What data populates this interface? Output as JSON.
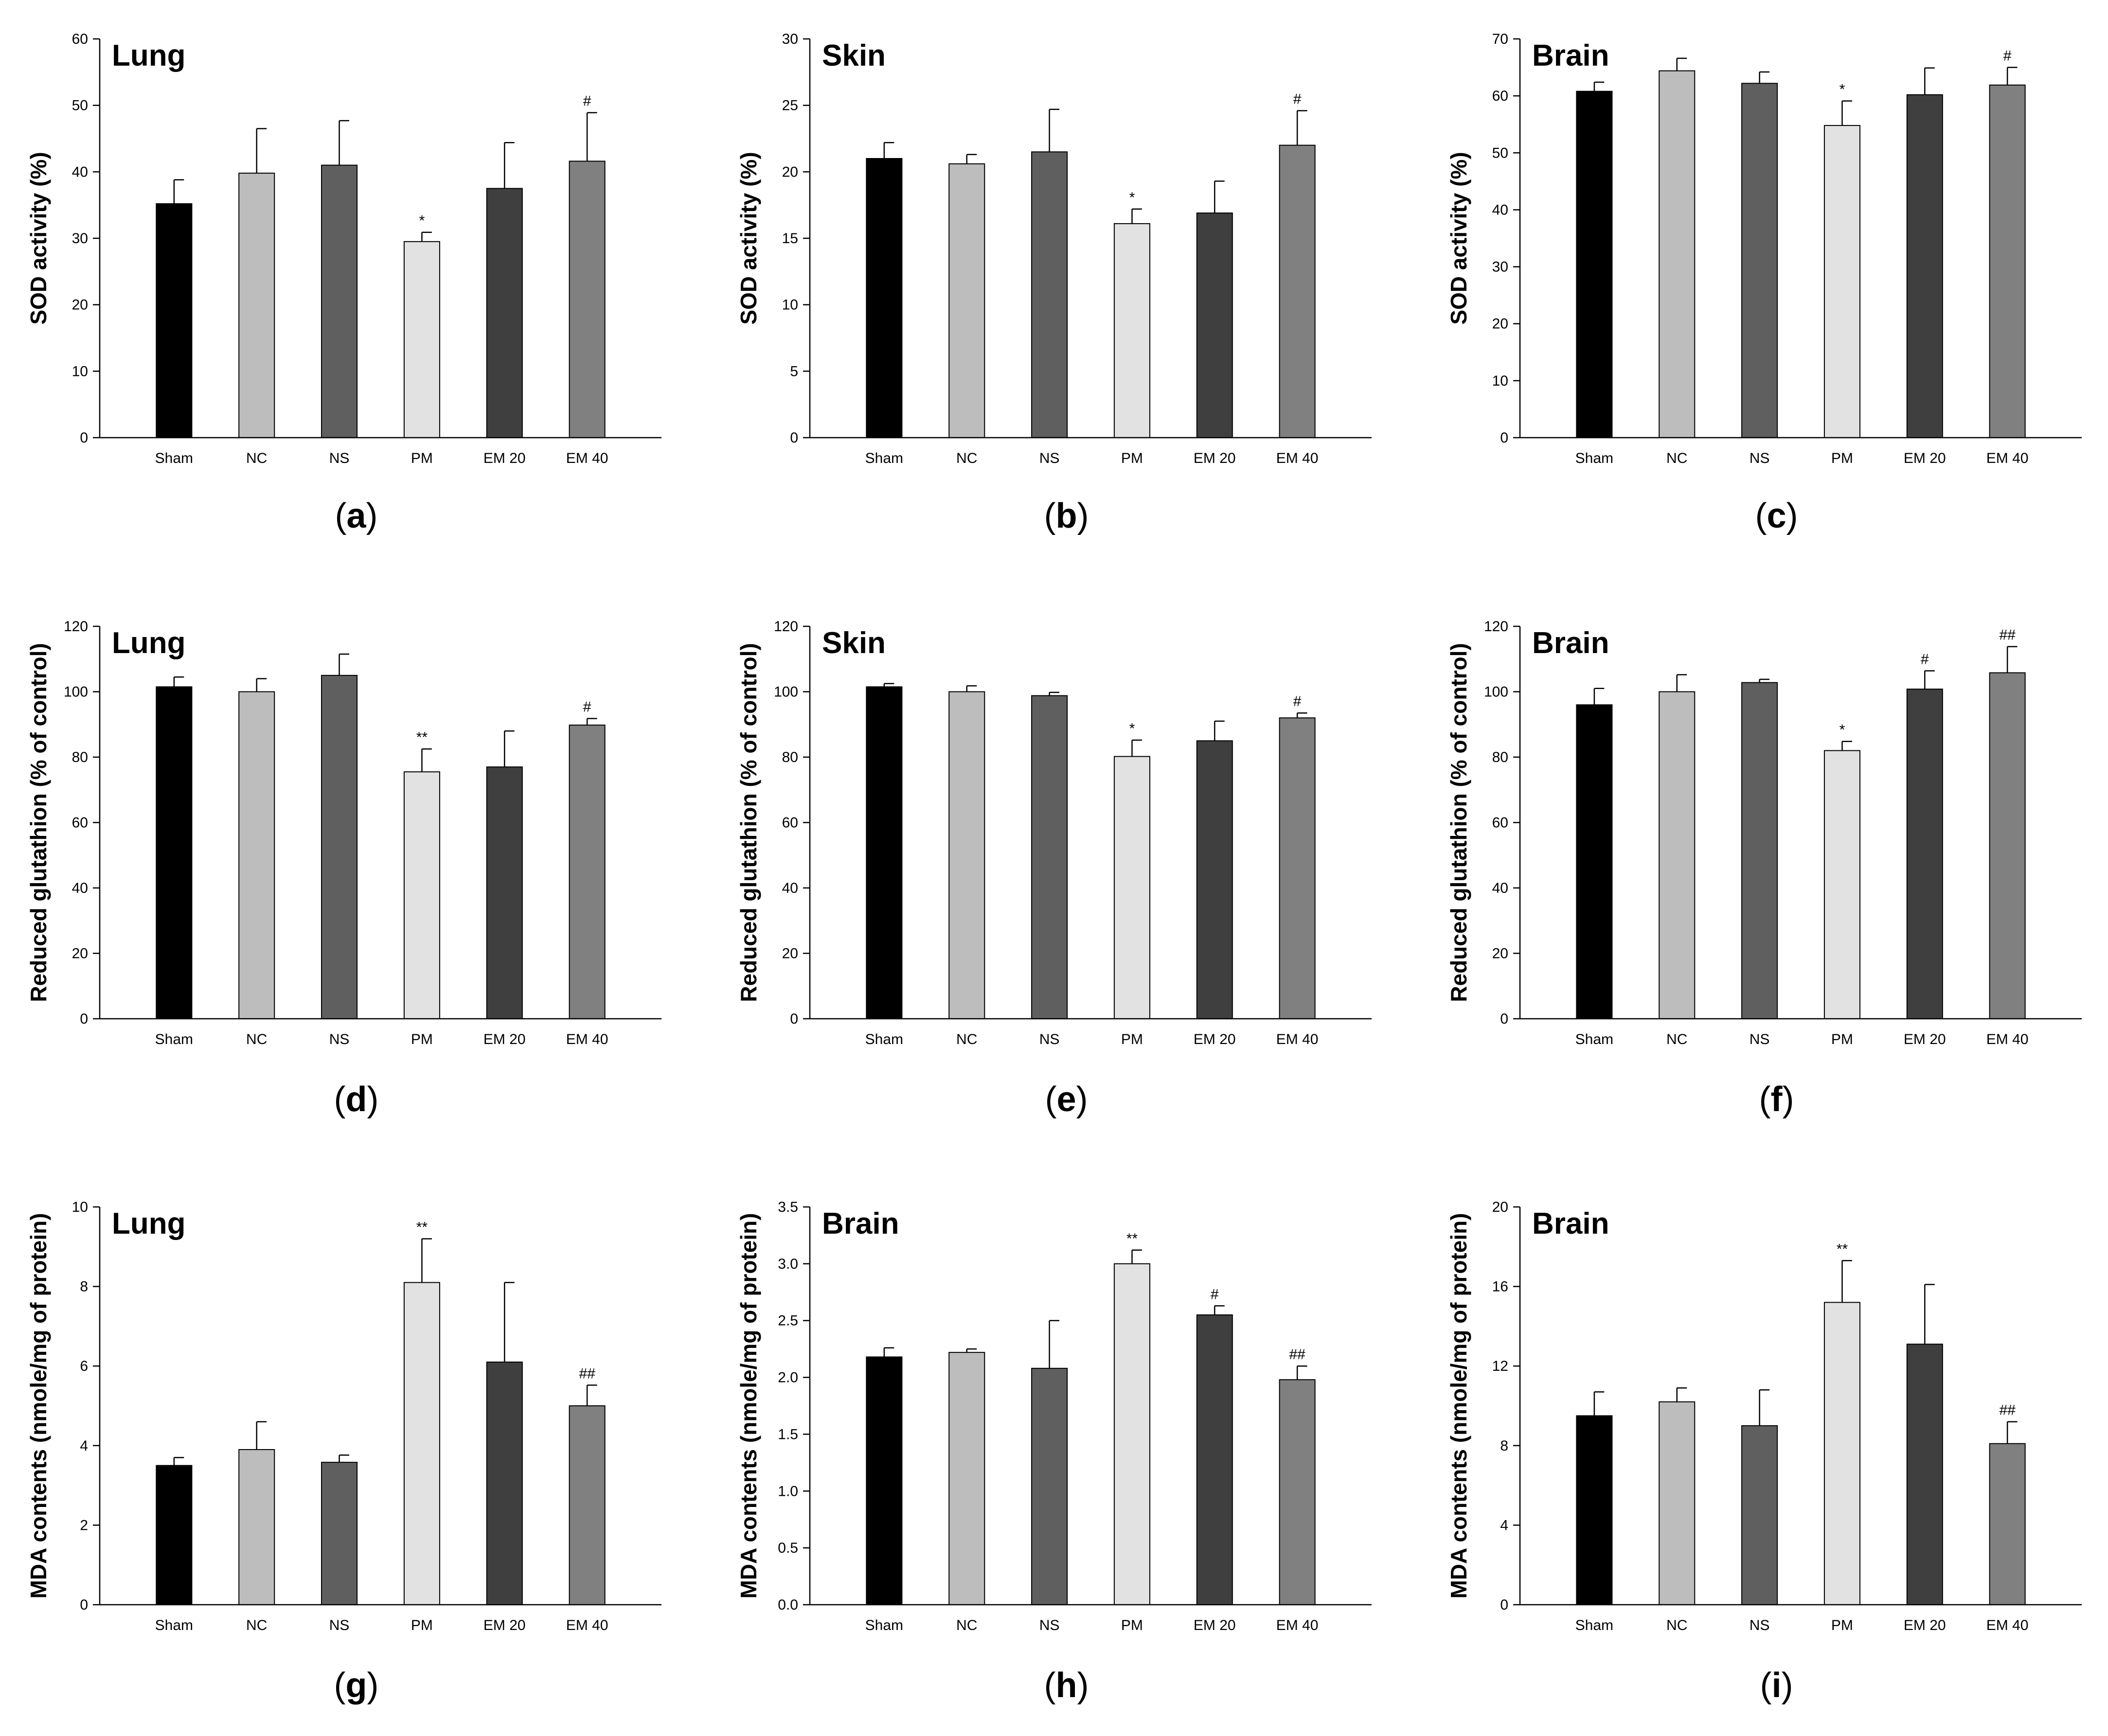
{
  "colors": {
    "Sham": "#000000",
    "NC": "#bdbdbd",
    "NS": "#5f5f5f",
    "PM": "#e2e2e2",
    "EM 20": "#3f3f3f",
    "EM 40": "#808080"
  },
  "chart_data": [
    {
      "id": "a",
      "type": "bar",
      "caption_letter": "a",
      "title": "Lung",
      "ylabel": "SOD activity (%)",
      "ylim": [
        0,
        60
      ],
      "yticks": [
        0,
        10,
        20,
        30,
        40,
        50,
        60
      ],
      "categories": [
        "Sham",
        "NC",
        "NS",
        "PM",
        "EM 20",
        "EM 40"
      ],
      "values": [
        35.2,
        39.8,
        41.0,
        29.5,
        37.5,
        41.6
      ],
      "errors": [
        3.6,
        6.7,
        6.7,
        1.4,
        6.9,
        7.3
      ],
      "significance": [
        "",
        "",
        "",
        "*",
        "",
        "#"
      ]
    },
    {
      "id": "b",
      "type": "bar",
      "caption_letter": "b",
      "title": "Skin",
      "ylabel": "SOD activity (%)",
      "ylim": [
        0,
        30
      ],
      "yticks": [
        0,
        5,
        10,
        15,
        20,
        25,
        30
      ],
      "categories": [
        "Sham",
        "NC",
        "NS",
        "PM",
        "EM 20",
        "EM 40"
      ],
      "values": [
        21.0,
        20.6,
        21.5,
        16.1,
        16.9,
        22.0
      ],
      "errors": [
        1.2,
        0.7,
        3.2,
        1.1,
        2.4,
        2.6
      ],
      "significance": [
        "",
        "",
        "",
        "*",
        "",
        "#"
      ]
    },
    {
      "id": "c",
      "type": "bar",
      "caption_letter": "c",
      "title": "Brain",
      "ylabel": "SOD activity (%)",
      "ylim": [
        0,
        70
      ],
      "yticks": [
        0,
        10,
        20,
        30,
        40,
        50,
        60,
        70
      ],
      "categories": [
        "Sham",
        "NC",
        "NS",
        "PM",
        "EM 20",
        "EM 40"
      ],
      "values": [
        60.8,
        64.4,
        62.2,
        54.8,
        60.2,
        61.9
      ],
      "errors": [
        1.6,
        2.2,
        2.0,
        4.3,
        4.7,
        3.1
      ],
      "significance": [
        "",
        "",
        "",
        "*",
        "",
        "#"
      ]
    },
    {
      "id": "d",
      "type": "bar",
      "caption_letter": "d",
      "title": "Lung",
      "ylabel": "Reduced glutathion (% of control)",
      "ylim": [
        0,
        120
      ],
      "yticks": [
        0,
        20,
        40,
        60,
        80,
        100,
        120
      ],
      "categories": [
        "Sham",
        "NC",
        "NS",
        "PM",
        "EM 20",
        "EM 40"
      ],
      "values": [
        101.5,
        100.0,
        105.0,
        75.5,
        77.0,
        89.8
      ],
      "errors": [
        3.0,
        4.0,
        6.5,
        7.0,
        11.0,
        2.0
      ],
      "significance": [
        "",
        "",
        "",
        "**",
        "",
        "#"
      ]
    },
    {
      "id": "e",
      "type": "bar",
      "caption_letter": "e",
      "title": "Skin",
      "ylabel": "Reduced glutathion (% of control)",
      "ylim": [
        0,
        120
      ],
      "yticks": [
        0,
        20,
        40,
        60,
        80,
        100,
        120
      ],
      "categories": [
        "Sham",
        "NC",
        "NS",
        "PM",
        "EM 20",
        "EM 40"
      ],
      "values": [
        101.5,
        100.0,
        98.8,
        80.2,
        85.0,
        92.0
      ],
      "errors": [
        1.0,
        1.8,
        1.0,
        5.0,
        6.0,
        1.5
      ],
      "significance": [
        "",
        "",
        "",
        "*",
        "",
        "#"
      ]
    },
    {
      "id": "f",
      "type": "bar",
      "caption_letter": "f",
      "title": "Brain",
      "ylabel": "Reduced glutathion (% of control)",
      "ylim": [
        0,
        120
      ],
      "yticks": [
        0,
        20,
        40,
        60,
        80,
        100,
        120
      ],
      "categories": [
        "Sham",
        "NC",
        "NS",
        "PM",
        "EM 20",
        "EM 40"
      ],
      "values": [
        96.0,
        100.0,
        102.8,
        82.0,
        100.8,
        105.8
      ],
      "errors": [
        5.0,
        5.2,
        1.0,
        2.8,
        5.6,
        8.0
      ],
      "significance": [
        "",
        "",
        "",
        "*",
        "#",
        "##"
      ]
    },
    {
      "id": "g",
      "type": "bar",
      "caption_letter": "g",
      "title": "Lung",
      "ylabel": "MDA contents (nmole/mg of protein)",
      "ylim": [
        0,
        10
      ],
      "yticks": [
        0,
        2,
        4,
        6,
        8,
        10
      ],
      "categories": [
        "Sham",
        "NC",
        "NS",
        "PM",
        "EM 20",
        "EM 40"
      ],
      "values": [
        3.5,
        3.9,
        3.58,
        8.1,
        6.1,
        5.0
      ],
      "errors": [
        0.2,
        0.7,
        0.18,
        1.1,
        2.0,
        0.52
      ],
      "significance": [
        "",
        "",
        "",
        "**",
        "",
        "##"
      ]
    },
    {
      "id": "h",
      "type": "bar",
      "caption_letter": "h",
      "title": "Brain",
      "ylabel": "MDA contents (nmole/mg of protein)",
      "ylim": [
        0,
        3.5
      ],
      "yticks": [
        0.0,
        0.5,
        1.0,
        1.5,
        2.0,
        2.5,
        3.0,
        3.5
      ],
      "ytick_labels": [
        "0.0",
        "0.5",
        "1.0",
        "1.5",
        "2.0",
        "2.5",
        "3.0",
        "3.5"
      ],
      "categories": [
        "Sham",
        "NC",
        "NS",
        "PM",
        "EM 20",
        "EM 40"
      ],
      "values": [
        2.18,
        2.22,
        2.08,
        3.0,
        2.55,
        1.98
      ],
      "errors": [
        0.08,
        0.03,
        0.42,
        0.12,
        0.08,
        0.12
      ],
      "significance": [
        "",
        "",
        "",
        "**",
        "#",
        "##"
      ]
    },
    {
      "id": "i",
      "type": "bar",
      "caption_letter": "i",
      "title": "Brain",
      "ylabel": "MDA contents (nmole/mg of protein)",
      "ylim": [
        0,
        20
      ],
      "yticks": [
        0,
        4,
        8,
        12,
        16,
        20
      ],
      "categories": [
        "Sham",
        "NC",
        "NS",
        "PM",
        "EM 20",
        "EM 40"
      ],
      "values": [
        9.5,
        10.2,
        9.0,
        15.2,
        13.1,
        8.1
      ],
      "errors": [
        1.2,
        0.7,
        1.8,
        2.1,
        3.0,
        1.1
      ],
      "significance": [
        "",
        "",
        "",
        "**",
        "",
        "##"
      ]
    }
  ]
}
